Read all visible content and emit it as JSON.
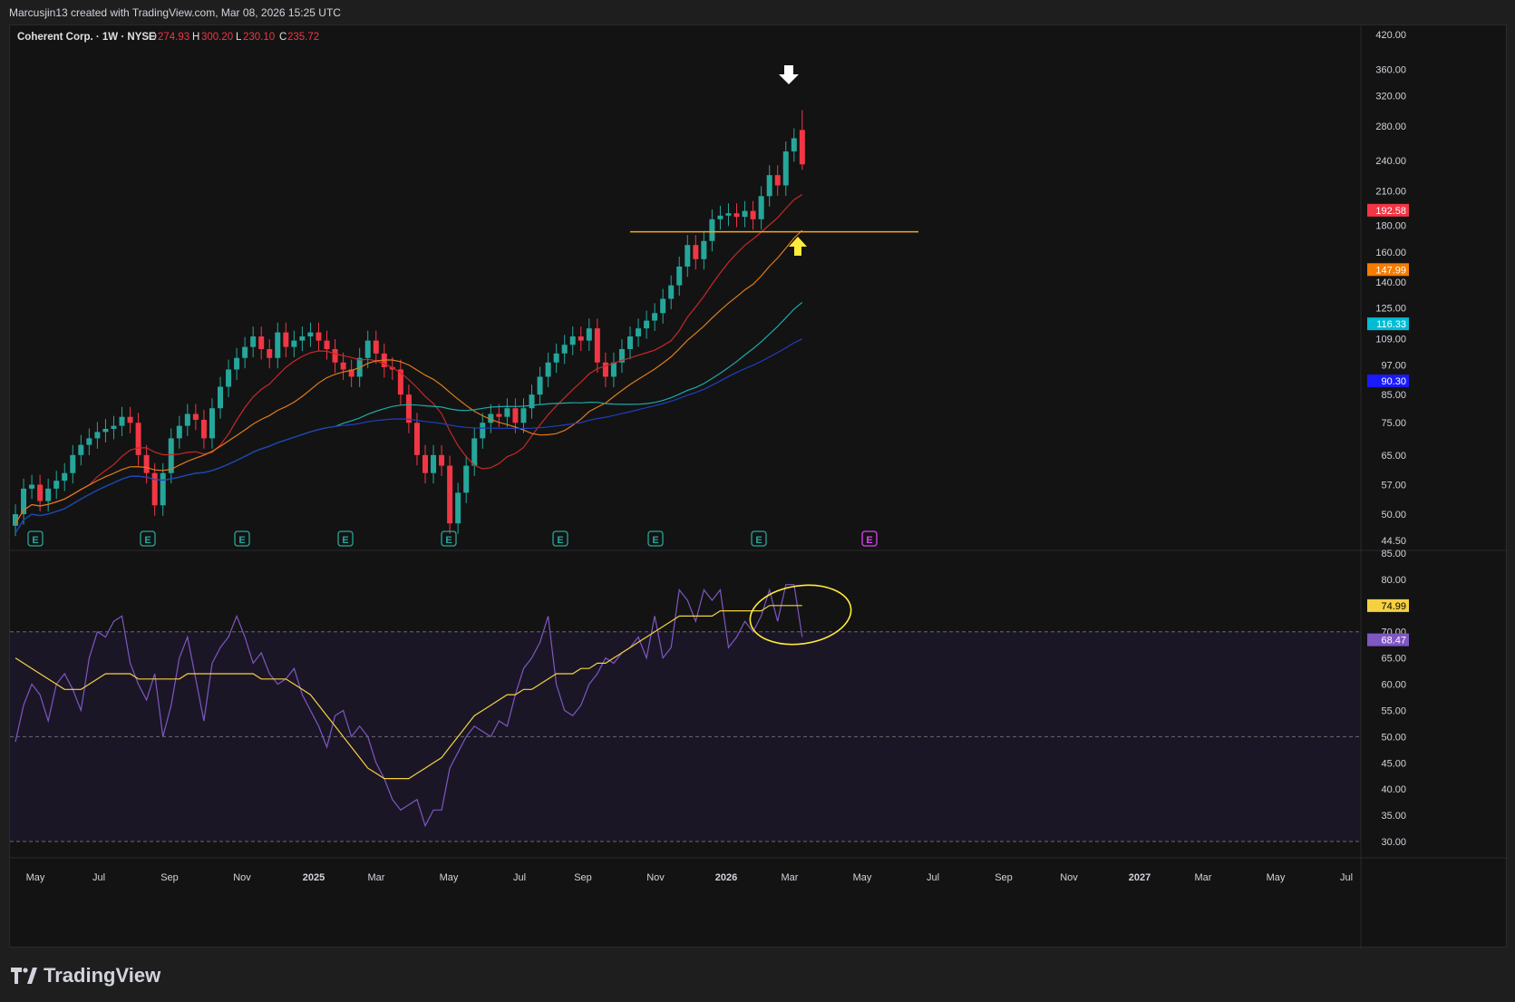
{
  "header": {
    "attribution": "Marcusjin13 created with TradingView.com, Mar 08, 2026 15:25 UTC",
    "symbol": "Coherent Corp. · 1W · NYSE",
    "o_label": "O",
    "o_value": "274.93",
    "h_label": "H",
    "h_value": "300.20",
    "l_label": "L",
    "l_value": "230.10",
    "c_label": "C",
    "c_value": "235.72"
  },
  "brand": "TradingView",
  "earnings_marker": "E",
  "colors": {
    "up": "#26a69a",
    "down": "#f23645",
    "background": "#131313",
    "ma1": "#c62828",
    "ma2": "#e07b1a",
    "ma3": "#1fa8a8",
    "ma4": "#1e3fbf",
    "support_line": "#f5a623",
    "rsi": "#7e57c2",
    "rsi_ma": "#f5d142"
  },
  "chart_data": [
    {
      "type": "candlestick",
      "title": "Coherent Corp. · 1W · NYSE",
      "scale": "log",
      "ylim": [
        44.5,
        420
      ],
      "price_ticks": [
        420,
        360,
        320,
        280,
        240,
        210,
        180,
        160,
        140,
        125,
        109,
        97,
        85,
        75,
        65,
        57,
        50,
        44.5
      ],
      "price_tick_labels": [
        "420.00",
        "360.00",
        "320.00",
        "280.00",
        "240.00",
        "210.00",
        "180.00",
        "160.00",
        "140.00",
        "125.00",
        "109.00",
        "97.00",
        "85.00",
        "75.00",
        "65.00",
        "57.00",
        "50.00",
        "44.50"
      ],
      "time_labels": [
        "May",
        "Jul",
        "Sep",
        "Nov",
        "2025",
        "Mar",
        "May",
        "Jul",
        "Sep",
        "Nov",
        "2026",
        "Mar",
        "May",
        "Jul",
        "Sep",
        "Nov",
        "2027",
        "Mar",
        "May",
        "Jul"
      ],
      "ma_value_tags": [
        {
          "label": "192.58",
          "value": 192.58,
          "color": "#f23645"
        },
        {
          "label": "147.99",
          "value": 147.99,
          "color": "#f57c00"
        },
        {
          "label": "116.33",
          "value": 116.33,
          "color": "#00bcd4"
        },
        {
          "label": "90.30",
          "value": 90.3,
          "color": "#1a1aff"
        }
      ],
      "support_level": 175,
      "close_series": [
        50,
        56,
        57,
        53,
        56,
        58,
        60,
        65,
        68,
        70,
        72,
        73,
        74,
        77,
        75,
        65,
        60,
        52,
        60,
        70,
        74,
        78,
        76,
        70,
        80,
        88,
        95,
        100,
        105,
        110,
        104,
        100,
        112,
        105,
        108,
        110,
        112,
        108,
        104,
        98,
        95,
        92,
        100,
        108,
        102,
        96,
        95,
        85,
        75,
        65,
        60,
        65,
        62,
        48,
        55,
        62,
        70,
        75,
        78,
        77,
        80,
        75,
        80,
        85,
        92,
        98,
        102,
        106,
        110,
        108,
        114,
        98,
        92,
        98,
        104,
        110,
        114,
        118,
        122,
        130,
        138,
        150,
        165,
        155,
        168,
        185,
        188,
        190,
        187,
        192,
        185,
        205,
        225,
        215,
        250,
        265,
        236
      ],
      "candles_note": "weekly bars approx."
    },
    {
      "type": "line",
      "ylim": [
        30,
        85
      ],
      "rsi_ticks": [
        85,
        80,
        75,
        70,
        65,
        60,
        55,
        50,
        45,
        40,
        35,
        30
      ],
      "rsi_tick_labels": [
        "85.00",
        "80.00",
        "75.00",
        "70.00",
        "65.00",
        "60.00",
        "55.00",
        "50.00",
        "45.00",
        "40.00",
        "35.00",
        "30.00"
      ],
      "bands": {
        "upper": 70,
        "middle": 50,
        "lower": 30
      },
      "value_tags": [
        {
          "label": "74.99",
          "value": 74.99,
          "color": "#f5d142"
        },
        {
          "label": "68.47",
          "value": 68.47,
          "color": "#7e57c2"
        }
      ],
      "rsi": [
        49,
        56,
        60,
        58,
        53,
        60,
        62,
        59,
        55,
        65,
        70,
        69,
        72,
        73,
        64,
        60,
        57,
        62,
        50,
        56,
        65,
        69,
        61,
        53,
        64,
        67,
        69,
        73,
        69,
        64,
        66,
        62,
        60,
        61,
        63,
        58,
        55,
        52,
        48,
        54,
        55,
        50,
        52,
        50,
        45,
        42,
        38,
        36,
        37,
        38,
        33,
        36,
        36,
        44,
        47,
        50,
        52,
        51,
        50,
        53,
        52,
        58,
        63,
        65,
        68,
        73,
        60,
        55,
        54,
        56,
        60,
        62,
        65,
        64,
        66,
        67,
        69,
        65,
        73,
        65,
        67,
        78,
        76,
        72,
        78,
        76,
        78,
        67,
        69,
        72,
        70,
        73,
        78,
        72,
        79,
        79,
        69
      ],
      "rsi_ma": [
        65,
        64,
        63,
        62,
        61,
        60,
        59,
        59,
        59,
        60,
        61,
        62,
        62,
        62,
        62,
        61,
        61,
        61,
        61,
        61,
        61,
        62,
        62,
        62,
        62,
        62,
        62,
        62,
        62,
        62,
        61,
        61,
        61,
        61,
        60,
        59,
        58,
        56,
        54,
        52,
        50,
        48,
        46,
        44,
        43,
        42,
        42,
        42,
        42,
        43,
        44,
        45,
        46,
        48,
        50,
        52,
        54,
        55,
        56,
        57,
        58,
        58,
        59,
        59,
        60,
        61,
        62,
        62,
        62,
        63,
        63,
        64,
        64,
        65,
        66,
        67,
        68,
        69,
        70,
        71,
        72,
        73,
        73,
        73,
        73,
        73,
        74,
        74,
        74,
        74,
        74,
        74,
        75,
        75,
        75,
        75,
        75
      ]
    }
  ]
}
